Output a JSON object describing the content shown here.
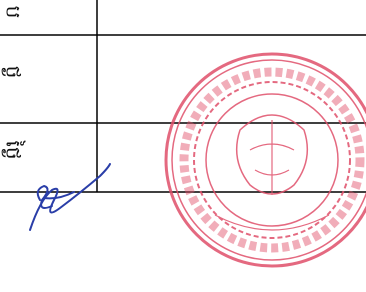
{
  "table": {
    "rows": [
      [
        "ប"
      ],
      [
        "ថ្ង"
      ],
      [
        "ថ្ងៃ"
      ]
    ]
  }
}
